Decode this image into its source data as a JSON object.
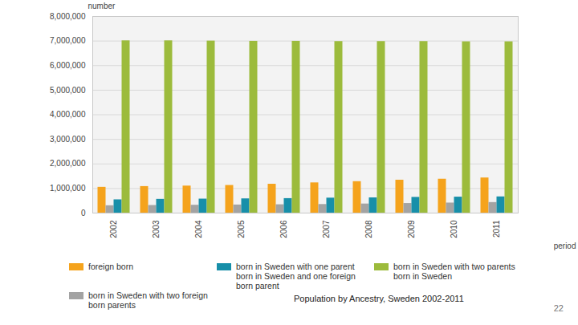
{
  "chart_data": {
    "type": "bar",
    "title": "Population by Ancestry, Sweden 2002-2011",
    "x_label": "period",
    "y_label": "number",
    "categories": [
      "2002",
      "2003",
      "2004",
      "2005",
      "2006",
      "2007",
      "2008",
      "2009",
      "2010",
      "2011"
    ],
    "series": [
      {
        "name": "foreign born",
        "color": "#f5a31c",
        "values": [
          1050000,
          1080000,
          1100000,
          1125000,
          1175000,
          1230000,
          1280000,
          1340000,
          1380000,
          1430000
        ]
      },
      {
        "name": "born in Sweden with two foreign born parents",
        "color": "#a3a3a3",
        "values": [
          300000,
          310000,
          320000,
          330000,
          340000,
          350000,
          370000,
          390000,
          410000,
          430000
        ]
      },
      {
        "name": "born in Sweden with one parent born in Sweden and one foreign born parent",
        "color": "#178fa9",
        "values": [
          540000,
          560000,
          570000,
          580000,
          590000,
          610000,
          620000,
          640000,
          650000,
          660000
        ]
      },
      {
        "name": "born in Sweden with two parents born in Sweden",
        "color": "#9cbb3c",
        "values": [
          7010000,
          7010000,
          7000000,
          6990000,
          6990000,
          6980000,
          6980000,
          6980000,
          6970000,
          6970000
        ]
      }
    ],
    "ylim": [
      0,
      8000000
    ],
    "yticks": [
      0,
      {
        "value": 1000000,
        "label": "1,000,000"
      },
      {
        "value": 2000000,
        "label": "2,000,000"
      },
      {
        "value": 3000000,
        "label": "3,000,000"
      },
      {
        "value": 4000000,
        "label": "4,000,000"
      },
      {
        "value": 5000000,
        "label": "5,000,000"
      },
      {
        "value": 6000000,
        "label": "6,000,000"
      },
      {
        "value": 7000000,
        "label": "7,000,000"
      },
      {
        "value": 8000000,
        "label": "8,000,000"
      }
    ],
    "grid": true,
    "legend": "bottom",
    "data_labels": false
  },
  "slide": {
    "page_number": "22"
  }
}
